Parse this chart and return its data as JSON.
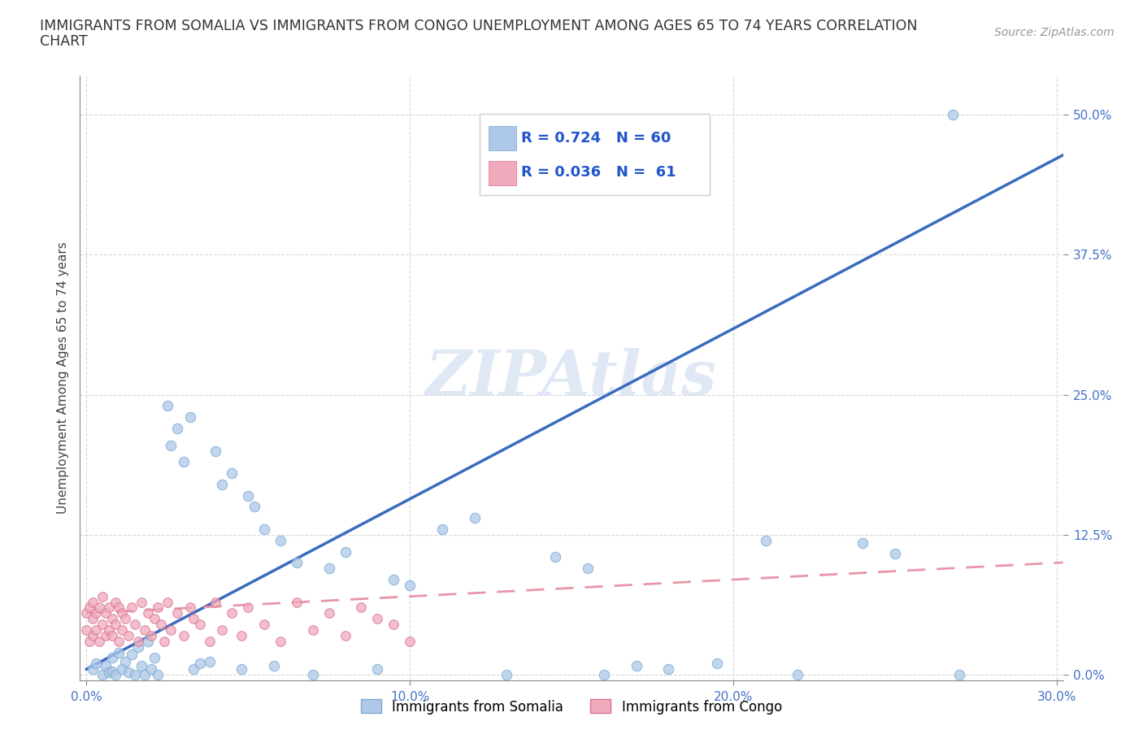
{
  "title_line1": "IMMIGRANTS FROM SOMALIA VS IMMIGRANTS FROM CONGO UNEMPLOYMENT AMONG AGES 65 TO 74 YEARS CORRELATION",
  "title_line2": "CHART",
  "source": "Source: ZipAtlas.com",
  "ylabel": "Unemployment Among Ages 65 to 74 years",
  "watermark": "ZIPAtlas",
  "somalia_color": "#adc8e8",
  "somalia_color_edge": "#7aaad0",
  "congo_color": "#f0aabb",
  "congo_color_edge": "#d87090",
  "blue_line_color": "#3a6bbf",
  "pink_line_color": "#e896a8",
  "R_somalia": 0.724,
  "N_somalia": 60,
  "R_congo": 0.036,
  "N_congo": 61,
  "xlim": [
    -0.002,
    0.302
  ],
  "ylim": [
    -0.005,
    0.535
  ],
  "yticks": [
    0.0,
    0.125,
    0.25,
    0.375,
    0.5
  ],
  "ytick_labels": [
    "0.0%",
    "12.5%",
    "25.0%",
    "37.5%",
    "50.0%"
  ],
  "xticks": [
    0.0,
    0.1,
    0.2,
    0.3
  ],
  "xtick_labels": [
    "0.0%",
    "10.0%",
    "20.0%",
    "30.0%"
  ],
  "legend_somalia": "Immigrants from Somalia",
  "legend_congo": "Immigrants from Congo",
  "background_color": "#ffffff",
  "grid_color": "#d8d8d8",
  "tick_color": "#4472c4",
  "somalia_x": [
    0.002,
    0.003,
    0.005,
    0.006,
    0.007,
    0.008,
    0.008,
    0.009,
    0.01,
    0.011,
    0.012,
    0.013,
    0.014,
    0.015,
    0.016,
    0.017,
    0.018,
    0.019,
    0.02,
    0.021,
    0.022,
    0.025,
    0.026,
    0.028,
    0.03,
    0.032,
    0.033,
    0.035,
    0.038,
    0.04,
    0.042,
    0.045,
    0.048,
    0.05,
    0.052,
    0.055,
    0.058,
    0.06,
    0.065,
    0.07,
    0.075,
    0.08,
    0.09,
    0.095,
    0.1,
    0.11,
    0.12,
    0.13,
    0.145,
    0.155,
    0.16,
    0.17,
    0.18,
    0.195,
    0.21,
    0.22,
    0.24,
    0.25,
    0.268,
    0.27
  ],
  "somalia_y": [
    0.005,
    0.01,
    0.0,
    0.008,
    0.002,
    0.015,
    0.003,
    0.0,
    0.02,
    0.005,
    0.012,
    0.002,
    0.018,
    0.0,
    0.025,
    0.008,
    0.0,
    0.03,
    0.005,
    0.015,
    0.0,
    0.24,
    0.205,
    0.22,
    0.19,
    0.23,
    0.005,
    0.01,
    0.012,
    0.2,
    0.17,
    0.18,
    0.005,
    0.16,
    0.15,
    0.13,
    0.008,
    0.12,
    0.1,
    0.0,
    0.095,
    0.11,
    0.005,
    0.085,
    0.08,
    0.13,
    0.14,
    0.0,
    0.105,
    0.095,
    0.0,
    0.008,
    0.005,
    0.01,
    0.12,
    0.0,
    0.118,
    0.108,
    0.5,
    0.0
  ],
  "congo_x": [
    0.0,
    0.0,
    0.001,
    0.001,
    0.002,
    0.002,
    0.002,
    0.003,
    0.003,
    0.004,
    0.004,
    0.005,
    0.005,
    0.006,
    0.006,
    0.007,
    0.007,
    0.008,
    0.008,
    0.009,
    0.009,
    0.01,
    0.01,
    0.011,
    0.011,
    0.012,
    0.013,
    0.014,
    0.015,
    0.016,
    0.017,
    0.018,
    0.019,
    0.02,
    0.021,
    0.022,
    0.023,
    0.024,
    0.025,
    0.026,
    0.028,
    0.03,
    0.032,
    0.033,
    0.035,
    0.038,
    0.04,
    0.042,
    0.045,
    0.048,
    0.05,
    0.055,
    0.06,
    0.065,
    0.07,
    0.075,
    0.08,
    0.085,
    0.09,
    0.095,
    0.1
  ],
  "congo_y": [
    0.04,
    0.055,
    0.03,
    0.06,
    0.035,
    0.05,
    0.065,
    0.04,
    0.055,
    0.03,
    0.06,
    0.045,
    0.07,
    0.035,
    0.055,
    0.04,
    0.06,
    0.05,
    0.035,
    0.065,
    0.045,
    0.03,
    0.06,
    0.055,
    0.04,
    0.05,
    0.035,
    0.06,
    0.045,
    0.03,
    0.065,
    0.04,
    0.055,
    0.035,
    0.05,
    0.06,
    0.045,
    0.03,
    0.065,
    0.04,
    0.055,
    0.035,
    0.06,
    0.05,
    0.045,
    0.03,
    0.065,
    0.04,
    0.055,
    0.035,
    0.06,
    0.045,
    0.03,
    0.065,
    0.04,
    0.055,
    0.035,
    0.06,
    0.05,
    0.045,
    0.03
  ]
}
